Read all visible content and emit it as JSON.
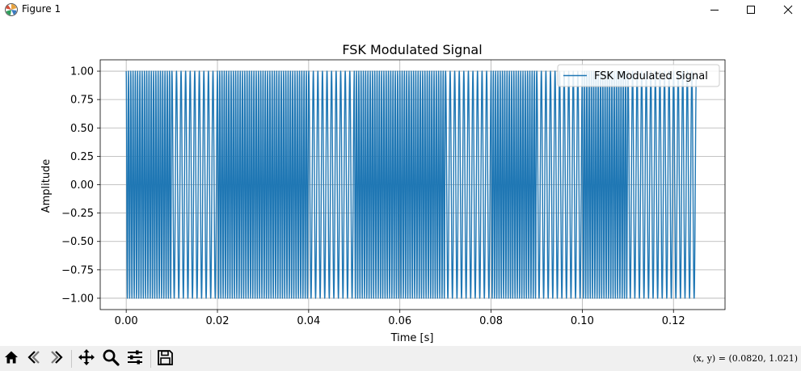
{
  "window": {
    "title": "Figure 1",
    "icons": {
      "app": "matplotlib-logo-icon",
      "minimize": "minimize-icon",
      "maximize": "maximize-icon",
      "close": "close-icon"
    }
  },
  "chart_data": {
    "type": "line",
    "title": "FSK Modulated Signal",
    "xlabel": "Time [s]",
    "ylabel": "Amplitude",
    "xlim": [
      -0.0057,
      0.1313
    ],
    "ylim": [
      -1.1,
      1.1
    ],
    "xticks": [
      0.0,
      0.02,
      0.04,
      0.06,
      0.08,
      0.1,
      0.12
    ],
    "xtick_labels": [
      "0.00",
      "0.02",
      "0.04",
      "0.06",
      "0.08",
      "0.10",
      "0.12"
    ],
    "yticks": [
      -1.0,
      -0.75,
      -0.5,
      -0.25,
      0.0,
      0.25,
      0.5,
      0.75,
      1.0
    ],
    "ytick_labels": [
      "−1.00",
      "−0.75",
      "−0.50",
      "−0.25",
      "0.00",
      "0.25",
      "0.50",
      "0.75",
      "1.00"
    ],
    "grid": true,
    "legend": "upper-right",
    "series": [
      {
        "name": "FSK Modulated Signal",
        "color": "#1f77b4",
        "kind": "fsk",
        "x_range": [
          0.0,
          0.125
        ],
        "amplitude": 1.0,
        "bit_duration": 0.01,
        "bit_frequencies": [
          2000,
          1000,
          2000,
          2000,
          1000,
          2000,
          2000,
          1000,
          2000,
          1000,
          2000,
          1000,
          1000
        ]
      }
    ]
  },
  "toolbar": {
    "icons": [
      "home-icon",
      "back-icon",
      "forward-icon",
      "pan-icon",
      "zoom-icon",
      "configure-subplots-icon",
      "save-icon"
    ],
    "coords": "(x, y) = (0.0820, 1.021)"
  }
}
